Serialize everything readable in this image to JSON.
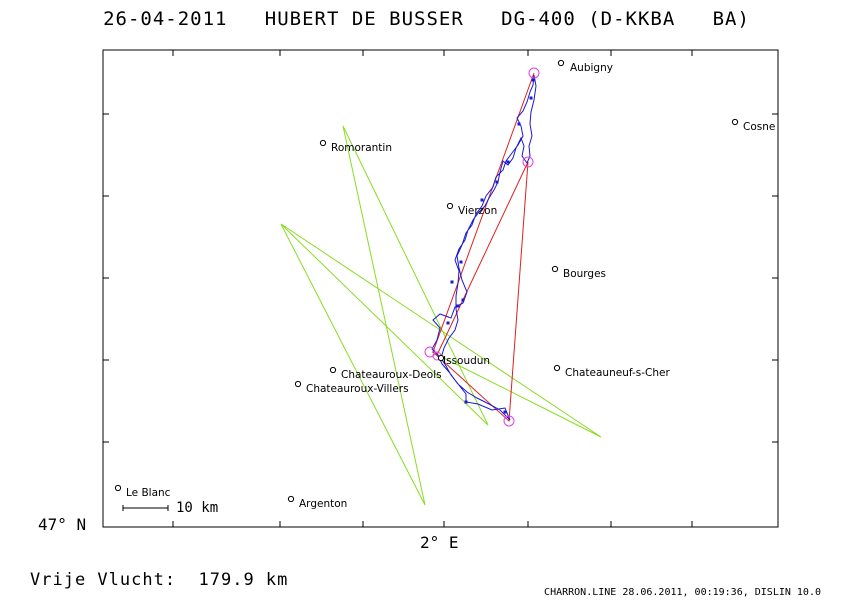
{
  "header": {
    "title": "26-04-2011   HUBERT DE BUSSER   DG-400 (D-KKBA   BA)"
  },
  "axes": {
    "latitude_label": "47° N",
    "longitude_label": "2° E"
  },
  "scale_bar": {
    "label": "10 km"
  },
  "summary": {
    "distance_text": "Vrije Vlucht:  179.9 km"
  },
  "footer": {
    "text": "CHARRON.LINE 28.06.2011, 00:19:36, DISLIN 10.0"
  },
  "colors": {
    "track": "#1a1ad0",
    "task_line": "#e02020",
    "projection": "#88dd22",
    "turnpoint": "#e040e0",
    "frame": "#000000"
  },
  "towns": [
    {
      "name": "Aubigny"
    },
    {
      "name": "Cosne"
    },
    {
      "name": "Romorantin"
    },
    {
      "name": "Vierzon"
    },
    {
      "name": "Bourges"
    },
    {
      "name": "Issoudun"
    },
    {
      "name": "Chateauroux-Deols"
    },
    {
      "name": "Chateauneuf-s-Cher"
    },
    {
      "name": "Chateauroux-Villers"
    },
    {
      "name": "Le Blanc"
    },
    {
      "name": "Argenton"
    }
  ]
}
